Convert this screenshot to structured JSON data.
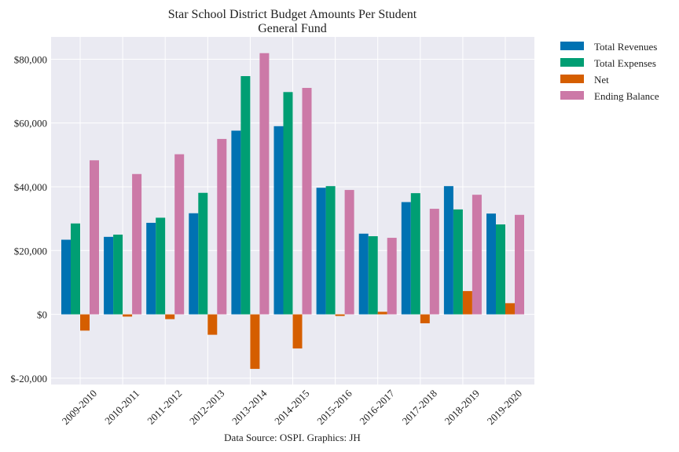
{
  "chart_data": {
    "type": "bar",
    "title": "Star School District Budget Amounts Per Student",
    "subtitle": "General Fund",
    "xlabel": "",
    "ylabel": "",
    "caption": "Data Source: OSPI. Graphics: JH",
    "ylim": [
      -22000,
      87000
    ],
    "yticks": [
      -20000,
      0,
      20000,
      40000,
      60000,
      80000
    ],
    "ytick_labels": [
      "$-20,000",
      "$0",
      "$20,000",
      "$40,000",
      "$60,000",
      "$80,000"
    ],
    "grid": true,
    "legend_position": "outside-top-right",
    "categories": [
      "2009-2010",
      "2010-2011",
      "2011-2012",
      "2012-2013",
      "2013-2014",
      "2014-2015",
      "2015-2016",
      "2016-2017",
      "2017-2018",
      "2018-2019",
      "2019-2020"
    ],
    "series": [
      {
        "name": "Total Revenues",
        "color": "#0072b2",
        "values": [
          23400,
          24300,
          28700,
          31700,
          57600,
          59000,
          39700,
          25300,
          35200,
          40200,
          31600
        ]
      },
      {
        "name": "Total Expenses",
        "color": "#009e73",
        "values": [
          28500,
          25000,
          30300,
          38100,
          74700,
          69700,
          40200,
          24500,
          38000,
          32900,
          28200
        ]
      },
      {
        "name": "Net",
        "color": "#d55e00",
        "values": [
          -5100,
          -700,
          -1500,
          -6400,
          -17100,
          -10700,
          -500,
          800,
          -2800,
          7300,
          3500
        ]
      },
      {
        "name": "Ending Balance",
        "color": "#cc79a7",
        "values": [
          48300,
          44000,
          50200,
          55000,
          81900,
          71000,
          39000,
          24000,
          33100,
          37500,
          31200
        ]
      }
    ]
  }
}
